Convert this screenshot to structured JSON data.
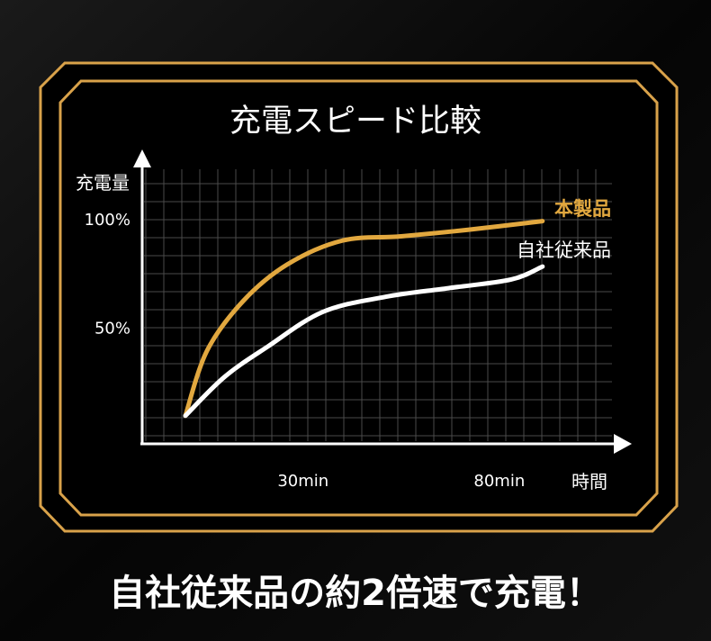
{
  "colors": {
    "background": "#000000",
    "frame": "#d9a24a",
    "product": "#e2a83f",
    "legacy": "#ffffff",
    "grid": "#4a4a4a"
  },
  "headline": "自社従来品の約2倍速で充電！",
  "chart_data": {
    "type": "line",
    "title": "充電スピード比較",
    "xlabel": "時間",
    "ylabel": "充電量",
    "x_ticks": [
      {
        "value": 30,
        "label": "30min"
      },
      {
        "value": 80,
        "label": "80min"
      }
    ],
    "y_ticks": [
      {
        "value": 50,
        "label": "50%"
      },
      {
        "value": 100,
        "label": "100%"
      }
    ],
    "xlim": [
      -11,
      111
    ],
    "ylim": [
      -4,
      123
    ],
    "grid": true,
    "legend": "inline labels at line ends (right)",
    "series": [
      {
        "name": "本製品",
        "color": "#e2a83f",
        "x": [
          0,
          5.5,
          14.7,
          26,
          40,
          55,
          72,
          91
        ],
        "y": [
          9,
          39,
          62,
          79,
          90,
          92,
          95,
          99
        ]
      },
      {
        "name": "自社従来品",
        "color": "#ffffff",
        "x": [
          0,
          10,
          21,
          35,
          51,
          67,
          83,
          91
        ],
        "y": [
          9,
          27,
          41,
          57,
          64,
          68,
          72,
          78
        ]
      }
    ]
  }
}
